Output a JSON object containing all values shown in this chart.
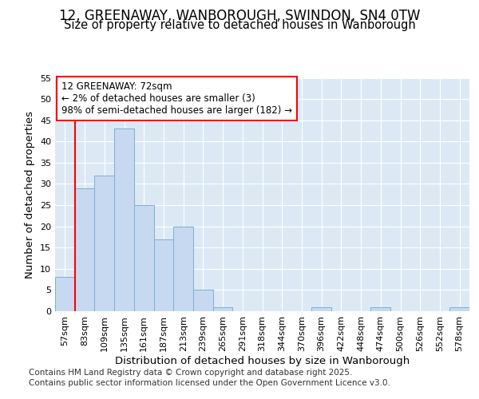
{
  "title_line1": "12, GREENAWAY, WANBOROUGH, SWINDON, SN4 0TW",
  "title_line2": "Size of property relative to detached houses in Wanborough",
  "xlabel": "Distribution of detached houses by size in Wanborough",
  "ylabel": "Number of detached properties",
  "bar_color": "#c6d9f0",
  "bar_edge_color": "#7bafd4",
  "categories": [
    "57sqm",
    "83sqm",
    "109sqm",
    "135sqm",
    "161sqm",
    "187sqm",
    "213sqm",
    "239sqm",
    "265sqm",
    "291sqm",
    "318sqm",
    "344sqm",
    "370sqm",
    "396sqm",
    "422sqm",
    "448sqm",
    "474sqm",
    "500sqm",
    "526sqm",
    "552sqm",
    "578sqm"
  ],
  "values": [
    8,
    29,
    32,
    43,
    25,
    17,
    20,
    5,
    1,
    0,
    0,
    0,
    0,
    1,
    0,
    0,
    1,
    0,
    0,
    0,
    1
  ],
  "ylim": [
    0,
    55
  ],
  "yticks": [
    0,
    5,
    10,
    15,
    20,
    25,
    30,
    35,
    40,
    45,
    50,
    55
  ],
  "annotation_line1": "12 GREENAWAY: 72sqm",
  "annotation_line2": "← 2% of detached houses are smaller (3)",
  "annotation_line3": "98% of semi-detached houses are larger (182) →",
  "vline_x_index": 0,
  "footer_line1": "Contains HM Land Registry data © Crown copyright and database right 2025.",
  "footer_line2": "Contains public sector information licensed under the Open Government Licence v3.0.",
  "background_color": "#ffffff",
  "plot_bg_color": "#dce9f5",
  "grid_color": "#ffffff",
  "title_fontsize": 12,
  "subtitle_fontsize": 10.5,
  "axis_label_fontsize": 9.5,
  "tick_fontsize": 8,
  "footer_fontsize": 7.5,
  "annotation_fontsize": 8.5
}
